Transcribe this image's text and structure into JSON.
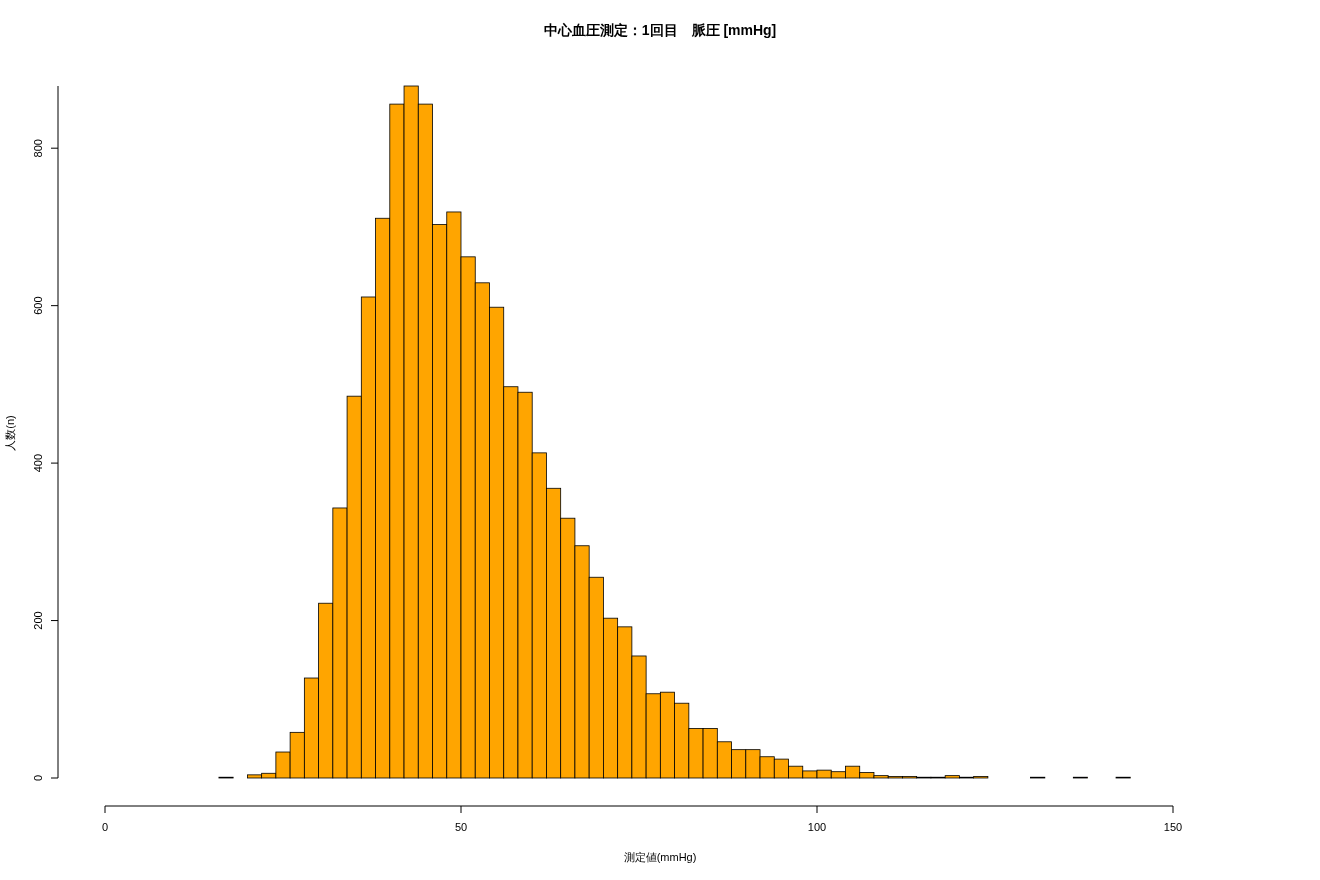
{
  "chart_data": {
    "type": "histogram",
    "title": "中心血圧測定：1回目　脈圧 [mmHg]",
    "xlabel": "測定値(mmHg)",
    "ylabel": "人数(n)",
    "bins": [
      16,
      18,
      20,
      22,
      24,
      26,
      28,
      30,
      32,
      34,
      36,
      38,
      40,
      42,
      44,
      46,
      48,
      50,
      52,
      54,
      56,
      58,
      60,
      62,
      64,
      66,
      68,
      70,
      72,
      74,
      76,
      78,
      80,
      82,
      84,
      86,
      88,
      90,
      92,
      94,
      96,
      98,
      100,
      102,
      104,
      106,
      108,
      110,
      112,
      114,
      116,
      118,
      120,
      122,
      124,
      126,
      128,
      130,
      132,
      134,
      136,
      138,
      140,
      142,
      144
    ],
    "values": [
      1,
      0,
      4,
      6,
      33,
      58,
      127,
      222,
      343,
      485,
      611,
      711,
      856,
      879,
      856,
      703,
      719,
      662,
      629,
      598,
      497,
      490,
      413,
      368,
      330,
      295,
      255,
      203,
      192,
      155,
      107,
      109,
      95,
      63,
      63,
      46,
      36,
      36,
      27,
      24,
      15,
      9,
      10,
      8,
      15,
      7,
      3,
      2,
      2,
      1,
      1,
      3,
      1,
      2,
      0,
      0,
      0,
      1,
      0,
      0,
      1,
      0,
      0,
      1
    ],
    "color": "#ffa500",
    "xlim": [
      0,
      150
    ],
    "xticks": [
      0,
      50,
      100,
      150
    ],
    "ylim": [
      0,
      879
    ],
    "yticks": [
      0,
      200,
      400,
      600,
      800
    ],
    "grid": false
  }
}
